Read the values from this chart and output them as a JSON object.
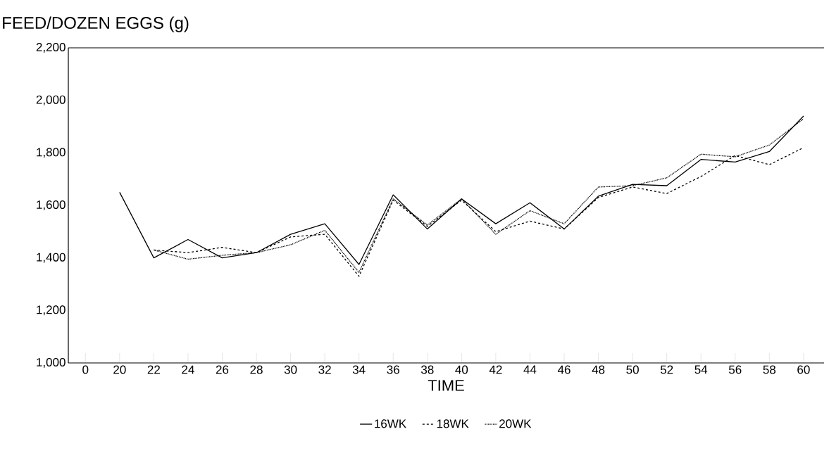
{
  "chart_data": {
    "type": "line",
    "ylabel": "FEED/DOZEN EGGS (g)",
    "xlabel": "TIME",
    "categories": [
      "0",
      "20",
      "22",
      "24",
      "26",
      "28",
      "30",
      "32",
      "34",
      "36",
      "38",
      "40",
      "42",
      "44",
      "46",
      "48",
      "50",
      "52",
      "54",
      "56",
      "58",
      "60"
    ],
    "ylim": [
      1000,
      2200
    ],
    "yticks": [
      {
        "value": 1000,
        "label": "1,000"
      },
      {
        "value": 1200,
        "label": "1,200"
      },
      {
        "value": 1400,
        "label": "1,400"
      },
      {
        "value": 1600,
        "label": "1,600"
      },
      {
        "value": 1800,
        "label": "1,800"
      },
      {
        "value": 2000,
        "label": "2,000"
      },
      {
        "value": 2200,
        "label": "2,200"
      }
    ],
    "grid": false,
    "legend": "bottom",
    "marker": "none",
    "series": [
      {
        "name": "16WK",
        "color": "#000000",
        "line_style": "solid",
        "values": [
          null,
          1650,
          1400,
          1470,
          1400,
          1420,
          1490,
          1530,
          1375,
          1640,
          1510,
          1625,
          1530,
          1610,
          1510,
          1635,
          1680,
          1675,
          1775,
          1765,
          1805,
          1940
        ]
      },
      {
        "name": "18WK",
        "color": "#000000",
        "line_style": "dashed",
        "values": [
          null,
          null,
          1430,
          1420,
          1440,
          1420,
          1480,
          1490,
          1330,
          1620,
          1520,
          1620,
          1500,
          1540,
          1510,
          1630,
          1670,
          1645,
          1710,
          1790,
          1755,
          1820
        ]
      },
      {
        "name": "20WK",
        "color": "#000000",
        "line_style": "dotted",
        "values": [
          null,
          null,
          1430,
          1395,
          1410,
          1420,
          1450,
          1505,
          1345,
          1625,
          1525,
          1625,
          1490,
          1580,
          1530,
          1670,
          1675,
          1705,
          1795,
          1785,
          1830,
          1930
        ]
      }
    ]
  }
}
